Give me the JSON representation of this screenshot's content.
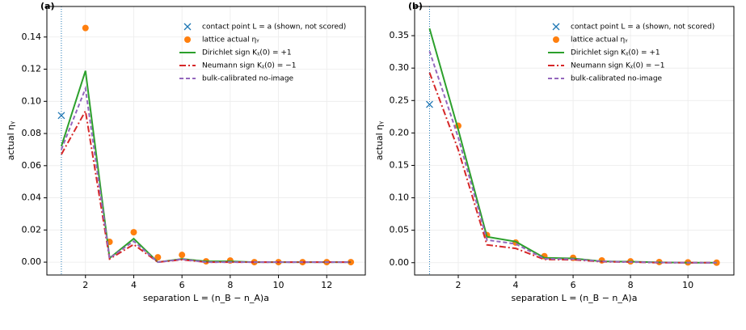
{
  "chart_data": [
    {
      "type": "line",
      "panel_label": "(a)",
      "x_label": "separation L = (n_B − n_A)a",
      "y_label": "actual ηᵧ",
      "xlim": [
        0.4,
        13.6
      ],
      "ylim": [
        -0.008,
        0.159
      ],
      "xticks": [
        2,
        4,
        6,
        8,
        10,
        12
      ],
      "yticks": [
        {
          "value": 0,
          "label": "0.00"
        },
        {
          "value": 0.02,
          "label": "0.02"
        },
        {
          "value": 0.04,
          "label": "0.04"
        },
        {
          "value": 0.06,
          "label": "0.06"
        },
        {
          "value": 0.08,
          "label": "0.08"
        },
        {
          "value": 0.1,
          "label": "0.10"
        },
        {
          "value": 0.12,
          "label": "0.12"
        },
        {
          "value": 0.14,
          "label": "0.14"
        }
      ],
      "grid": true,
      "legend": "upper right",
      "vline": 1,
      "series": [
        {
          "name": "contact point L = a (shown, not scored)",
          "color": "#1f77b4",
          "marker": "x",
          "x": [
            1
          ],
          "values": [
            0.0912
          ]
        },
        {
          "name": "lattice actual ηᵧ",
          "color": "#ff7f0e",
          "marker": "o",
          "x": [
            2,
            3,
            4,
            5,
            6,
            7,
            8,
            9,
            10,
            11,
            12,
            13
          ],
          "values": [
            0.1456,
            0.0126,
            0.0186,
            0.003,
            0.0045,
            0.0005,
            0.001,
            0,
            0,
            0,
            0,
            0
          ]
        },
        {
          "name": "Dirichlet sign Kᵪ(0) = +1",
          "color": "#2ca02c",
          "linestyle": "solid",
          "x": [
            1,
            2,
            3,
            4,
            5,
            6,
            7,
            8,
            9,
            10,
            11,
            12,
            13
          ],
          "values": [
            0.072,
            0.119,
            0.0025,
            0.0146,
            0,
            0.002,
            0.0005,
            0.0005,
            0,
            0,
            0,
            0,
            0
          ]
        },
        {
          "name": "Neumann sign Kᵪ(0) = −1",
          "color": "#d62728",
          "linestyle": "dashdot",
          "x": [
            1,
            2,
            3,
            4,
            5,
            6,
            7,
            8,
            9,
            10,
            11,
            12,
            13
          ],
          "values": [
            0.067,
            0.094,
            0.002,
            0.011,
            0,
            0.0015,
            0,
            0,
            0,
            0,
            0,
            0,
            0
          ]
        },
        {
          "name": "bulk-calibrated no-image",
          "color": "#9467bd",
          "linestyle": "dashed",
          "x": [
            1,
            2,
            3,
            4,
            5,
            6,
            7,
            8,
            9,
            10,
            11,
            12,
            13
          ],
          "values": [
            0.07,
            0.108,
            0.0025,
            0.013,
            0,
            0.0018,
            0,
            0,
            0,
            0,
            0,
            0,
            0
          ]
        }
      ]
    },
    {
      "type": "line",
      "panel_label": "(b)",
      "x_label": "separation L = (n_B − n_A)a",
      "y_label": "actual ηᵧ",
      "xlim": [
        0.48,
        11.6
      ],
      "ylim": [
        -0.019,
        0.395
      ],
      "xticks": [
        2,
        4,
        6,
        8,
        10
      ],
      "yticks": [
        {
          "value": 0,
          "label": "0.00"
        },
        {
          "value": 0.05,
          "label": "0.05"
        },
        {
          "value": 0.1,
          "label": "0.10"
        },
        {
          "value": 0.15,
          "label": "0.15"
        },
        {
          "value": 0.2,
          "label": "0.20"
        },
        {
          "value": 0.25,
          "label": "0.25"
        },
        {
          "value": 0.3,
          "label": "0.30"
        },
        {
          "value": 0.35,
          "label": "0.35"
        }
      ],
      "grid": true,
      "legend": "upper right",
      "vline": 1,
      "series": [
        {
          "name": "contact point L = a (shown, not scored)",
          "color": "#1f77b4",
          "marker": "x",
          "x": [
            1
          ],
          "values": [
            0.244
          ]
        },
        {
          "name": "lattice actual ηᵧ",
          "color": "#ff7f0e",
          "marker": "o",
          "x": [
            2,
            3,
            4,
            5,
            6,
            7,
            8,
            9,
            10,
            11
          ],
          "values": [
            0.211,
            0.0425,
            0.031,
            0.01,
            0.0075,
            0.0035,
            0.002,
            0.001,
            0.0005,
            0
          ]
        },
        {
          "name": "Dirichlet sign Kᵪ(0) = +1",
          "color": "#2ca02c",
          "linestyle": "solid",
          "x": [
            1,
            2,
            3,
            4,
            5,
            6,
            7,
            8,
            9,
            10,
            11
          ],
          "values": [
            0.361,
            0.205,
            0.04,
            0.0325,
            0.0075,
            0.0065,
            0.002,
            0.0015,
            0.0005,
            0,
            0
          ]
        },
        {
          "name": "Neumann sign Kᵪ(0) = −1",
          "color": "#d62728",
          "linestyle": "dashdot",
          "x": [
            1,
            2,
            3,
            4,
            5,
            6,
            7,
            8,
            9,
            10,
            11
          ],
          "values": [
            0.293,
            0.174,
            0.0275,
            0.022,
            0.005,
            0.0045,
            0.0015,
            0.001,
            0,
            0,
            0
          ]
        },
        {
          "name": "bulk-calibrated no-image",
          "color": "#9467bd",
          "linestyle": "dashed",
          "x": [
            1,
            2,
            3,
            4,
            5,
            6,
            7,
            8,
            9,
            10,
            11
          ],
          "values": [
            0.326,
            0.193,
            0.035,
            0.029,
            0.006,
            0.0055,
            0.002,
            0.001,
            0.0003,
            0,
            0
          ]
        }
      ]
    }
  ]
}
